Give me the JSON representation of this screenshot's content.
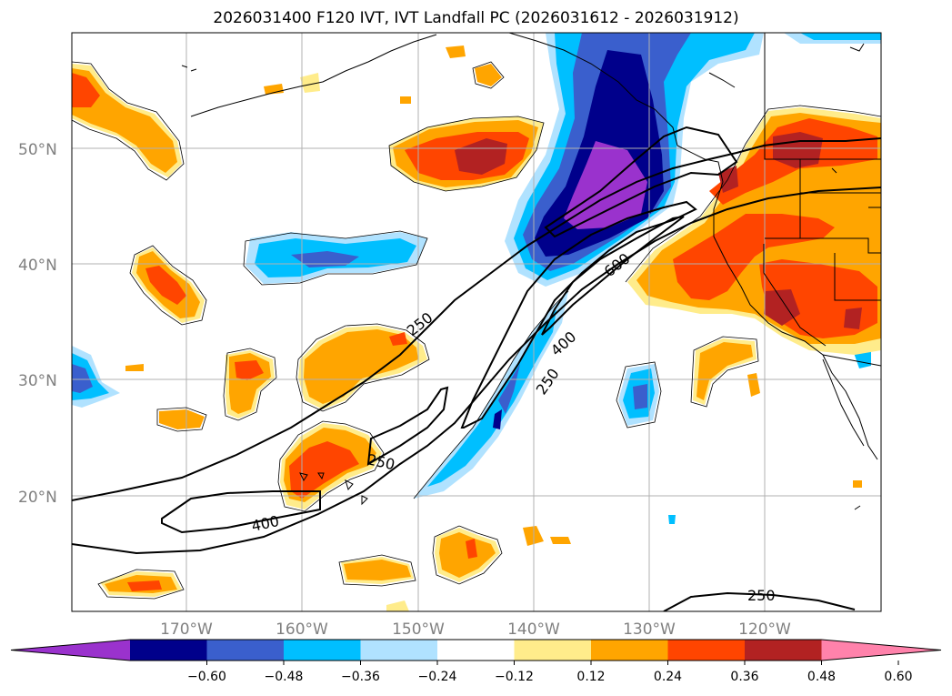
{
  "title": "2026031400 F120 IVT, IVT Landfall PC (2026031612 - 2026031912)",
  "lat_labels": [
    "50°N",
    "40°N",
    "30°N",
    "20°N"
  ],
  "lon_labels": [
    "170°W",
    "160°W",
    "150°W",
    "140°W",
    "130°W",
    "120°W"
  ],
  "contour_labels": [
    "250",
    "600",
    "400",
    "250",
    "250",
    "400",
    "250"
  ],
  "colorbar": {
    "ticks": [
      "−0.60",
      "−0.48",
      "−0.36",
      "−0.24",
      "−0.12",
      "0.12",
      "0.24",
      "0.36",
      "0.48",
      "0.60"
    ],
    "colors": [
      "#9a32cd",
      "#00008b",
      "#3a5fcd",
      "#00bfff",
      "#b0e2ff",
      "#ffffff",
      "#ffec8b",
      "#ffa500",
      "#ff4500",
      "#b22222",
      "#ff82ab"
    ]
  },
  "palette": {
    "neg_outer": "#b0e2ff",
    "neg_1": "#00bfff",
    "neg_2": "#3a5fcd",
    "neg_3": "#00008b",
    "neg_4": "#9a32cd",
    "pos_outer": "#ffec8b",
    "pos_1": "#ffa500",
    "pos_2": "#ff4500",
    "pos_3": "#b22222"
  }
}
